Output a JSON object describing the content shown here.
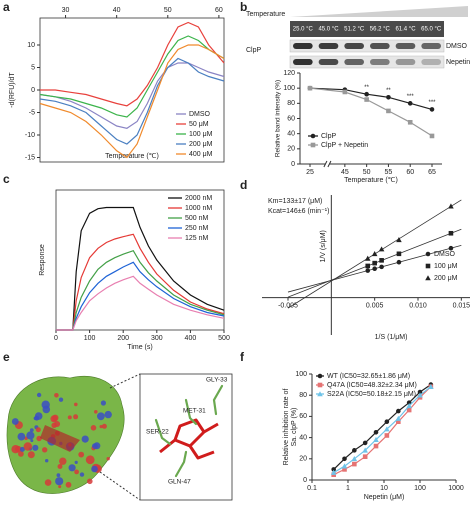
{
  "chart_data": [
    {
      "type": "line",
      "panel_label": "a",
      "xlabel": "Temperature (℃)",
      "ylabel": "-d(RFU)/dT",
      "x": [
        25,
        28,
        31,
        34,
        37,
        40,
        42,
        44,
        46,
        48,
        50,
        52,
        54,
        56,
        58,
        61
      ],
      "xlim": [
        25,
        61
      ],
      "xticks": [
        30,
        40,
        50,
        60
      ],
      "ylim": [
        -16,
        16
      ],
      "yticks": [
        -15,
        -10,
        -5,
        0,
        5,
        10
      ],
      "series": [
        {
          "name": "DMSO",
          "color": "#8a84c4",
          "values": [
            -1,
            -1.5,
            -2.5,
            -4,
            -6,
            -8,
            -8.5,
            -7,
            -3,
            2,
            5,
            6,
            6,
            5,
            4,
            3
          ]
        },
        {
          "name": "50 μM",
          "color": "#e8413c",
          "values": [
            0,
            0,
            -0.5,
            -1,
            -2,
            -3,
            -3.5,
            -2,
            1,
            5,
            10,
            14,
            15,
            14,
            10,
            6
          ]
        },
        {
          "name": "100 μM",
          "color": "#3cb44b",
          "values": [
            -1,
            -1.5,
            -2,
            -3,
            -4,
            -5.5,
            -6,
            -4,
            0,
            4,
            8,
            11,
            12,
            11,
            9,
            7
          ]
        },
        {
          "name": "200 μM",
          "color": "#4a7fc1",
          "values": [
            -2,
            -2.5,
            -3.5,
            -5,
            -8,
            -11,
            -12,
            -10,
            -5,
            1,
            5,
            7,
            6,
            4,
            3,
            2
          ]
        },
        {
          "name": "400 μM",
          "color": "#f08a2c",
          "values": [
            -3,
            -4,
            -5,
            -7,
            -10,
            -13.5,
            -15,
            -12,
            -6,
            0,
            6,
            9,
            10,
            10,
            9,
            7
          ]
        }
      ]
    },
    {
      "type": "line",
      "panel_label": "b",
      "blot": {
        "header": "Temperature",
        "protein": "ClpP",
        "temperatures": [
          "25.0 °C",
          "45.0 °C",
          "51.2 °C",
          "56.2 °C",
          "61.4 °C",
          "65.0 °C"
        ],
        "conditions": [
          "DMSO",
          "Nepetin"
        ]
      },
      "categories": [
        "25",
        "45",
        "50",
        "55",
        "60",
        "65"
      ],
      "xlabel": "Temperature (℃)",
      "ylabel": "Relative band intensity (%)",
      "ylim": [
        0,
        120
      ],
      "yticks": [
        0,
        20,
        40,
        60,
        80,
        100,
        120
      ],
      "series": [
        {
          "name": "ClpP",
          "color": "#222222",
          "marker": "circle",
          "values": [
            100,
            98,
            92,
            88,
            80,
            72
          ]
        },
        {
          "name": "ClpP + Nepetin",
          "color": "#999999",
          "marker": "square",
          "values": [
            100,
            95,
            85,
            70,
            55,
            37
          ]
        }
      ],
      "significance": [
        "**",
        "**",
        "***",
        "***"
      ]
    },
    {
      "type": "line",
      "panel_label": "c",
      "xlabel": "Time (s)",
      "ylabel": "Response",
      "x": [
        0,
        25,
        50,
        60,
        75,
        100,
        125,
        150,
        175,
        200,
        230,
        250,
        275,
        300,
        350,
        400,
        450,
        500
      ],
      "xlim": [
        0,
        500
      ],
      "xticks": [
        0,
        100,
        200,
        300,
        400,
        500
      ],
      "ylim": [
        0,
        120
      ],
      "series": [
        {
          "name": "2000 nM",
          "color": "#111111",
          "values": [
            0,
            0,
            0,
            50,
            85,
            100,
            104,
            105,
            105,
            105,
            105,
            88,
            72,
            60,
            42,
            30,
            22,
            17
          ]
        },
        {
          "name": "1000 nM",
          "color": "#e53935",
          "values": [
            0,
            0,
            0,
            25,
            45,
            62,
            70,
            75,
            78,
            80,
            82,
            70,
            58,
            48,
            34,
            24,
            18,
            14
          ]
        },
        {
          "name": "500 nM",
          "color": "#43a047",
          "values": [
            0,
            0,
            0,
            15,
            28,
            42,
            52,
            58,
            62,
            65,
            68,
            58,
            49,
            42,
            30,
            22,
            17,
            13
          ]
        },
        {
          "name": "250 nM",
          "color": "#1e63d6",
          "values": [
            0,
            0,
            0,
            10,
            20,
            32,
            40,
            46,
            50,
            54,
            58,
            50,
            43,
            37,
            27,
            20,
            15,
            12
          ]
        },
        {
          "name": "125 nM",
          "color": "#e87fb0",
          "values": [
            0,
            0,
            0,
            8,
            15,
            25,
            31,
            36,
            40,
            43,
            46,
            40,
            35,
            30,
            22,
            17,
            13,
            10
          ]
        }
      ]
    },
    {
      "type": "scatter",
      "panel_label": "d",
      "xlabel": "1/S (1/μM)",
      "ylabel": "1/V (s/μM)",
      "annotations": [
        "Km=133±17 (μM)",
        "Kcat=146±6 (min⁻¹)"
      ],
      "x": [
        0.0042,
        0.005,
        0.0058,
        0.0078,
        0.0138
      ],
      "xlim": [
        -0.008,
        0.016
      ],
      "xticks": [
        {
          "value": -0.005,
          "label": "-0.005"
        },
        0.005,
        {
          "value": 0.01,
          "label": "0.010"
        },
        0.015
      ],
      "ylim": [
        -2,
        5.5
      ],
      "series": [
        {
          "name": "DMSO",
          "color": "#222222",
          "marker": "circle",
          "values": [
            1.45,
            1.55,
            1.65,
            1.9,
            2.65
          ]
        },
        {
          "name": "100 μM",
          "color": "#222222",
          "marker": "square",
          "values": [
            1.7,
            1.85,
            2.0,
            2.35,
            3.45
          ]
        },
        {
          "name": "200 μM",
          "color": "#222222",
          "marker": "triangle",
          "values": [
            2.1,
            2.35,
            2.6,
            3.1,
            4.9
          ]
        }
      ]
    },
    {
      "type": "line",
      "panel_label": "f",
      "xlabel": "Nepetin (μM)",
      "ylabel": [
        "Relative inhibition rate of",
        "Sa. clpP (%)"
      ],
      "log_x": true,
      "x": [
        0.4,
        0.8,
        1.5,
        3,
        6,
        12,
        25,
        50,
        100,
        200
      ],
      "xlim": [
        0.1,
        1000
      ],
      "xticks": [
        0.1,
        1,
        10,
        100,
        1000
      ],
      "ylim": [
        0,
        100
      ],
      "yticks": [
        0,
        20,
        40,
        60,
        80,
        100
      ],
      "series": [
        {
          "name": "WT (IC50=32.65±1.86 μM)",
          "color": "#222222",
          "marker": "circle",
          "values": [
            10,
            20,
            28,
            35,
            45,
            55,
            65,
            73,
            83,
            90
          ]
        },
        {
          "name": "Q47A (IC50=48.32±2.34 μM)",
          "color": "#e57373",
          "marker": "square",
          "values": [
            5,
            10,
            15,
            22,
            32,
            42,
            55,
            66,
            78,
            88
          ]
        },
        {
          "name": "S22A (IC50=50.18±2.15 μM)",
          "color": "#6fc3e8",
          "marker": "triangle",
          "values": [
            7,
            13,
            20,
            28,
            38,
            48,
            58,
            70,
            80,
            88
          ]
        }
      ]
    }
  ],
  "panel_e": {
    "panel_label": "e",
    "residues": [
      "SER-22",
      "MET-31",
      "GLY-33",
      "GLN-47"
    ]
  }
}
